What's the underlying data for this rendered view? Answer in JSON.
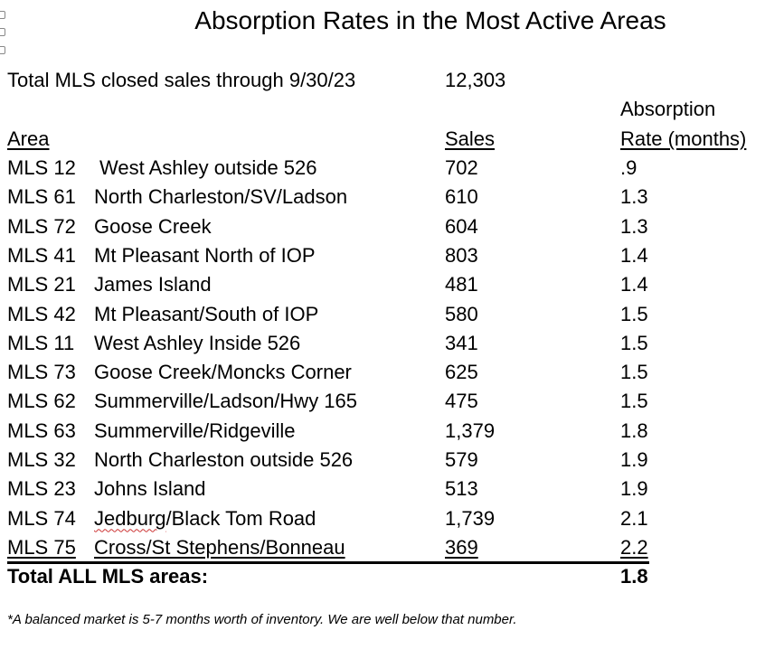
{
  "title": "Absorption Rates in the Most Active Areas",
  "summary": {
    "label": "Total MLS closed sales through 9/30/23",
    "value": "12,303"
  },
  "headers": {
    "area": "Area",
    "sales": "Sales",
    "rate_line1": "Absorption",
    "rate_line2": "Rate (months)"
  },
  "rows": [
    {
      "code": "MLS 12",
      "name": "West Ashley outside 526",
      "sales": "702",
      "rate": ".9"
    },
    {
      "code": "MLS 61",
      "name": "North Charleston/SV/Ladson",
      "sales": "610",
      "rate": "1.3"
    },
    {
      "code": "MLS 72",
      "name": "Goose Creek",
      "sales": "604",
      "rate": "1.3"
    },
    {
      "code": "MLS 41",
      "name": "Mt Pleasant North of IOP",
      "sales": "803",
      "rate": "1.4"
    },
    {
      "code": "MLS 21",
      "name": "James Island",
      "sales": "481",
      "rate": "1.4"
    },
    {
      "code": "MLS 42",
      "name": "Mt Pleasant/South of IOP",
      "sales": "580",
      "rate": "1.5"
    },
    {
      "code": "MLS 11",
      "name": "West Ashley Inside 526",
      "sales": "341",
      "rate": "1.5"
    },
    {
      "code": "MLS 73",
      "name": "Goose Creek/Moncks Corner",
      "sales": "625",
      "rate": "1.5"
    },
    {
      "code": "MLS 62",
      "name": "Summerville/Ladson/Hwy 165",
      "sales": "475",
      "rate": "1.5"
    },
    {
      "code": "MLS 63",
      "name": "Summerville/Ridgeville",
      "sales": "1,379",
      "rate": "1.8"
    },
    {
      "code": "MLS 32",
      "name": "North Charleston outside 526",
      "sales": "579",
      "rate": "1.9"
    },
    {
      "code": "MLS 23",
      "name": "Johns Island",
      "sales": "513",
      "rate": "1.9"
    },
    {
      "code": "MLS 74",
      "name_a": "Jedburg",
      "name_b": "/Black Tom Road",
      "sales": "1,739",
      "rate": "2.1"
    },
    {
      "code": "MLS 75",
      "name": "Cross/St Stephens/Bonneau",
      "sales": "369",
      "rate": "2.2"
    }
  ],
  "total": {
    "label": "Total ALL MLS areas:",
    "rate": "1.8"
  },
  "footnote": "*A balanced market is 5-7 months worth of inventory. We are well below that number."
}
